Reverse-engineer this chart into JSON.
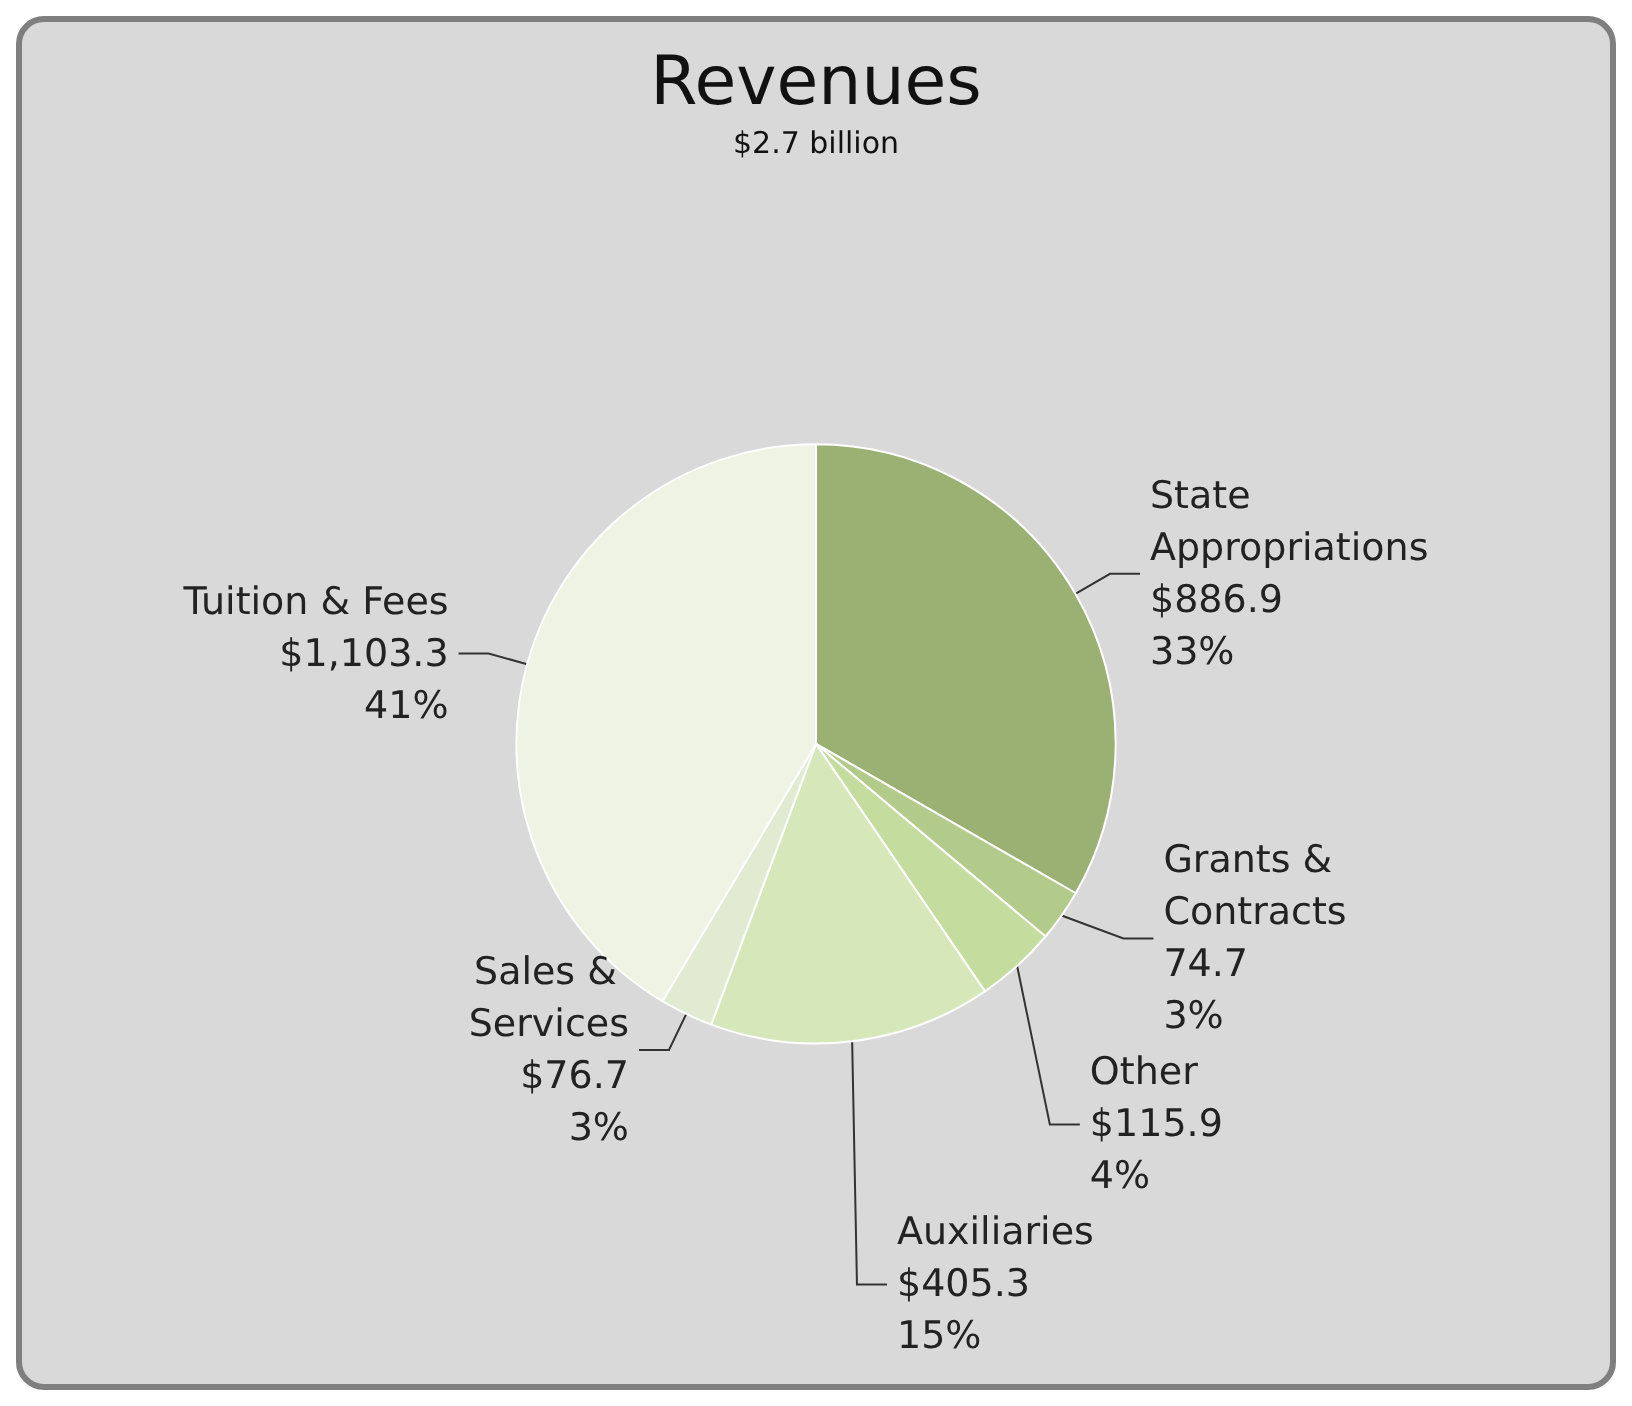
{
  "chart_data": {
    "type": "pie",
    "title": "Revenues",
    "subtitle": "$2.7 billion",
    "categories": [
      "State Appropriations",
      "Grants & Contracts",
      "Other",
      "Auxiliaries",
      "Sales & Services",
      "Tuition & Fees"
    ],
    "values": [
      886.9,
      74.7,
      115.9,
      405.3,
      76.7,
      1103.3
    ],
    "value_labels": [
      "$886.9\n33%",
      "74.7\n3%",
      "$115.9\n4%",
      "$405.3\n15%",
      "$76.7\n3%",
      "$1,103.3\n41%"
    ],
    "colors": [
      "#9bb173",
      "#b3cb8a",
      "#c4dd9f",
      "#d6e8b9",
      "#e1ebd2",
      "#eef3e3"
    ],
    "legend": false
  }
}
